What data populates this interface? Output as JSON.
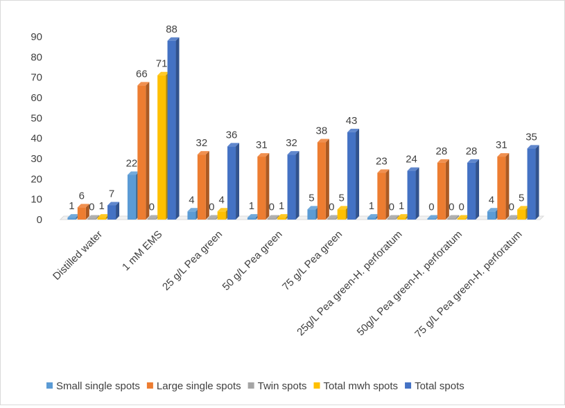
{
  "chart_data": {
    "type": "bar",
    "style": "3d-clustered-column",
    "categories": [
      "Distilled water",
      "1 mM EMS",
      "25 g/L Pea green",
      "50 g/L Pea green",
      "75 g/L Pea green",
      "25g/L Pea green-H. perforatum",
      "50g/L Pea green-H. perforatum",
      "75 g/L Pea green-H. perforatum"
    ],
    "series": [
      {
        "name": "Small single spots",
        "color": "#5B9BD5",
        "values": [
          1,
          22,
          4,
          1,
          5,
          1,
          0,
          4
        ]
      },
      {
        "name": "Large single spots",
        "color": "#ED7D31",
        "values": [
          6,
          66,
          32,
          31,
          38,
          23,
          28,
          31
        ]
      },
      {
        "name": "Twin spots",
        "color": "#A5A5A5",
        "values": [
          0,
          0,
          0,
          0,
          0,
          0,
          0,
          0
        ]
      },
      {
        "name": "Total mwh spots",
        "color": "#FFC000",
        "values": [
          1,
          71,
          4,
          1,
          5,
          1,
          0,
          5
        ]
      },
      {
        "name": "Total spots",
        "color": "#4472C4",
        "values": [
          7,
          88,
          36,
          32,
          43,
          24,
          28,
          35
        ]
      }
    ],
    "data_labels": [
      [
        "1",
        "6",
        "0",
        "1",
        "7"
      ],
      [
        "22",
        "66",
        "0",
        "71",
        "88"
      ],
      [
        "4",
        "32",
        "0",
        "4",
        "36"
      ],
      [
        "1",
        "31",
        "0",
        "1",
        "32"
      ],
      [
        "5",
        "38",
        "0",
        "5",
        "43"
      ],
      [
        "1",
        "23",
        "0",
        "1",
        "24"
      ],
      [
        "0",
        "28",
        "0",
        "0",
        "28"
      ],
      [
        "4",
        "31",
        "0",
        "5",
        "35"
      ]
    ],
    "y_ticks": [
      "0",
      "10",
      "20",
      "30",
      "40",
      "50",
      "60",
      "70",
      "80",
      "90"
    ],
    "ylim": [
      0,
      90
    ],
    "title": "",
    "xlabel": "",
    "ylabel": "",
    "grid": false,
    "legend_position": "bottom"
  }
}
